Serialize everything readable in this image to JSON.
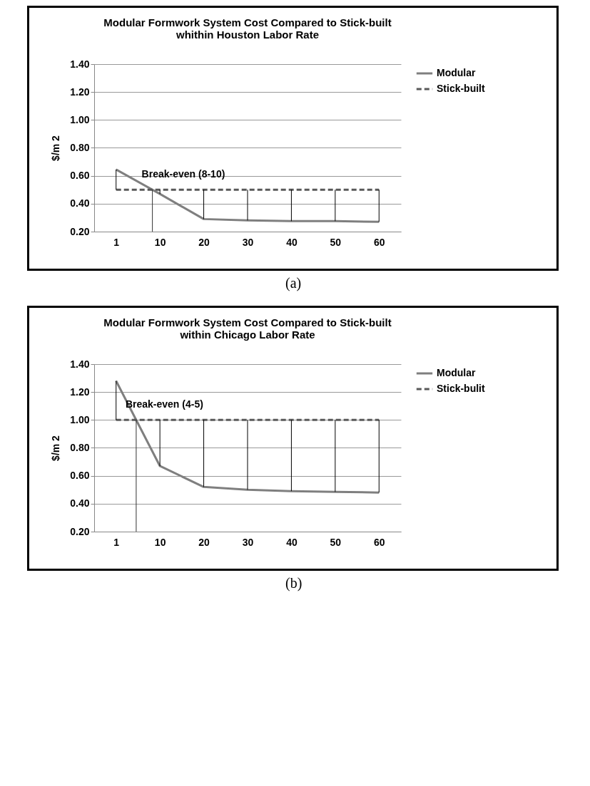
{
  "chart_data": [
    {
      "type": "line",
      "title": "Modular Formwork System Cost Compared to Stick-built\nwhithin Houston Labor Rate",
      "ylabel": "$/m 2",
      "categories": [
        "1",
        "10",
        "20",
        "30",
        "40",
        "50",
        "60"
      ],
      "series": [
        {
          "name": "Modular",
          "color": "#7f7f7f",
          "line_style": "solid",
          "values": [
            0.645,
            0.47,
            0.29,
            0.28,
            0.275,
            0.275,
            0.27
          ]
        },
        {
          "name": "Stick-built",
          "color": "#595959",
          "line_style": "dashed",
          "values": [
            0.5,
            0.5,
            0.5,
            0.5,
            0.5,
            0.5,
            0.5
          ]
        }
      ],
      "ylim": [
        0.2,
        1.4
      ],
      "yticks": [
        {
          "value": 0.2,
          "label": "0.20"
        },
        {
          "value": 0.4,
          "label": "0.40"
        },
        {
          "value": 0.6,
          "label": "0.60"
        },
        {
          "value": 0.8,
          "label": "0.80"
        },
        {
          "value": 1.0,
          "label": "1.00"
        },
        {
          "value": 1.2,
          "label": "1.20"
        },
        {
          "value": 1.4,
          "label": "1.40"
        }
      ],
      "grid": "y",
      "legend": "right",
      "marker": "none",
      "annotations": [
        {
          "text": "Break-even (8-10)",
          "y": 0.5
        },
        "(a)"
      ]
    },
    {
      "type": "line",
      "title": "Modular Formwork System Cost Compared to Stick-built\nwithin Chicago Labor Rate",
      "ylabel": "$/m 2",
      "categories": [
        "1",
        "10",
        "20",
        "30",
        "40",
        "50",
        "60"
      ],
      "series": [
        {
          "name": "Modular",
          "color": "#7f7f7f",
          "line_style": "solid",
          "values": [
            1.28,
            0.67,
            0.52,
            0.5,
            0.49,
            0.485,
            0.48
          ]
        },
        {
          "name": "Stick-bulit",
          "color": "#595959",
          "line_style": "dashed",
          "values": [
            1.0,
            1.0,
            1.0,
            1.0,
            1.0,
            1.0,
            1.0
          ]
        }
      ],
      "ylim": [
        0.2,
        1.4
      ],
      "yticks": [
        {
          "value": 0.2,
          "label": "0.20"
        },
        {
          "value": 0.4,
          "label": "0.40"
        },
        {
          "value": 0.6,
          "label": "0.60"
        },
        {
          "value": 0.8,
          "label": "0.80"
        },
        {
          "value": 1.0,
          "label": "1.00"
        },
        {
          "value": 1.2,
          "label": "1.20"
        },
        {
          "value": 1.4,
          "label": "1.40"
        }
      ],
      "grid": "y",
      "legend": "right",
      "marker": "none",
      "annotations": [
        {
          "text": "Break-even (4-5)",
          "y": 1.0
        },
        "(b)"
      ]
    }
  ]
}
